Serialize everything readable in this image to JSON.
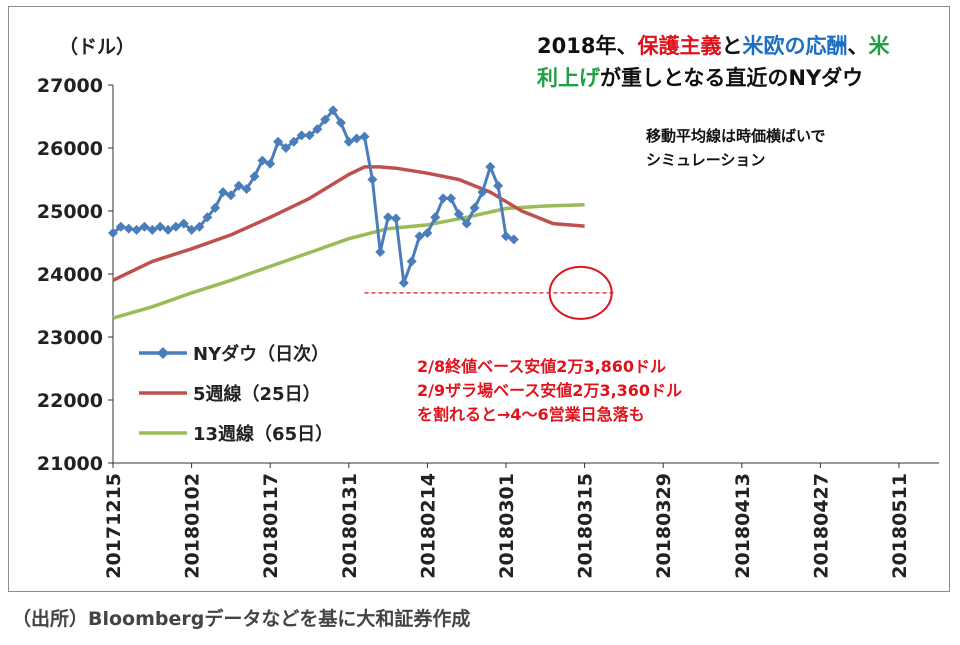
{
  "chart_data": {
    "type": "line",
    "unit_label": "（ドル）",
    "title_line1": [
      {
        "text": "2018年、",
        "color": "#111111"
      },
      {
        "text": "保護主義",
        "color": "#e0121b"
      },
      {
        "text": "と",
        "color": "#111111"
      },
      {
        "text": "米欧の応酬",
        "color": "#1c6fc4"
      },
      {
        "text": "、",
        "color": "#111111"
      },
      {
        "text": "米",
        "color": "#22a046"
      }
    ],
    "title_line2": [
      {
        "text": "利上げ",
        "color": "#22a046"
      },
      {
        "text": "が重しとなる直近のNYダウ",
        "color": "#111111"
      }
    ],
    "note_lines": [
      "移動平均線は時価横ばいで",
      "シミュレーション"
    ],
    "annotation_lines": [
      "2/8終値ベース安値2万3,860ドル",
      "2/9ザラ場ベース安値2万3,360ドル",
      "を割れると→4～6営業日急落も"
    ],
    "ylim": [
      21000,
      27000
    ],
    "yticks": [
      "21000",
      "22000",
      "23000",
      "24000",
      "25000",
      "26000",
      "27000"
    ],
    "xlim": [
      0,
      105
    ],
    "xticks": [
      {
        "label": "20171215",
        "pos": 0
      },
      {
        "label": "20180102",
        "pos": 10
      },
      {
        "label": "20180117",
        "pos": 20
      },
      {
        "label": "20180131",
        "pos": 30
      },
      {
        "label": "20180214",
        "pos": 40
      },
      {
        "label": "20180301",
        "pos": 50
      },
      {
        "label": "20180315",
        "pos": 60
      },
      {
        "label": "20180329",
        "pos": 70
      },
      {
        "label": "20180413",
        "pos": 80
      },
      {
        "label": "20180427",
        "pos": 90
      },
      {
        "label": "20180511",
        "pos": 100
      }
    ],
    "series": [
      {
        "name": "NYダウ（日次）",
        "color": "#4a7ebb",
        "marker": "diamond",
        "x": [
          0,
          1,
          2,
          3,
          4,
          5,
          6,
          7,
          8,
          9,
          10,
          11,
          12,
          13,
          14,
          15,
          16,
          17,
          18,
          19,
          20,
          21,
          22,
          23,
          24,
          25,
          26,
          27,
          28,
          29,
          30,
          31,
          32,
          33,
          34,
          35,
          36,
          37,
          38,
          39,
          40,
          41,
          42,
          43,
          44,
          45,
          46,
          47,
          48,
          49,
          50,
          51
        ],
        "values": [
          24650,
          24750,
          24720,
          24700,
          24750,
          24700,
          24750,
          24700,
          24750,
          24800,
          24700,
          24750,
          24900,
          25050,
          25300,
          25250,
          25400,
          25350,
          25550,
          25800,
          25750,
          26100,
          26000,
          26100,
          26200,
          26200,
          26300,
          26450,
          26600,
          26400,
          26100,
          26150,
          26180,
          25500,
          24350,
          24900,
          24880,
          23860,
          24200,
          24600,
          24650,
          24900,
          25200,
          25200,
          24950,
          24800,
          25050,
          25300,
          25700,
          25400,
          24600,
          24550
        ]
      },
      {
        "name": "5週線（25日）",
        "color": "#c0504d",
        "marker": "none",
        "x": [
          0,
          5,
          10,
          15,
          20,
          25,
          30,
          32,
          34,
          36,
          40,
          44,
          48,
          52,
          56,
          60
        ],
        "values": [
          23900,
          24200,
          24400,
          24620,
          24900,
          25200,
          25580,
          25700,
          25700,
          25680,
          25600,
          25500,
          25300,
          25000,
          24800,
          24760
        ]
      },
      {
        "name": "13週線（65日）",
        "color": "#9bbb59",
        "marker": "none",
        "x": [
          0,
          5,
          10,
          15,
          20,
          25,
          30,
          35,
          40,
          45,
          50,
          55,
          60
        ],
        "values": [
          23300,
          23480,
          23700,
          23900,
          24120,
          24340,
          24560,
          24720,
          24780,
          24900,
          25040,
          25080,
          25100
        ]
      }
    ],
    "threshold_line": {
      "y": 23700,
      "x": [
        32,
        64
      ],
      "color": "#e0121b",
      "style": "dashed"
    },
    "highlight_circle": {
      "x": 59.5,
      "y": 23700,
      "color": "#e0121b"
    },
    "legend_position": "left-center",
    "grid": false
  },
  "source_text": "（出所）Bloombergデータなどを基に大和証券作成"
}
